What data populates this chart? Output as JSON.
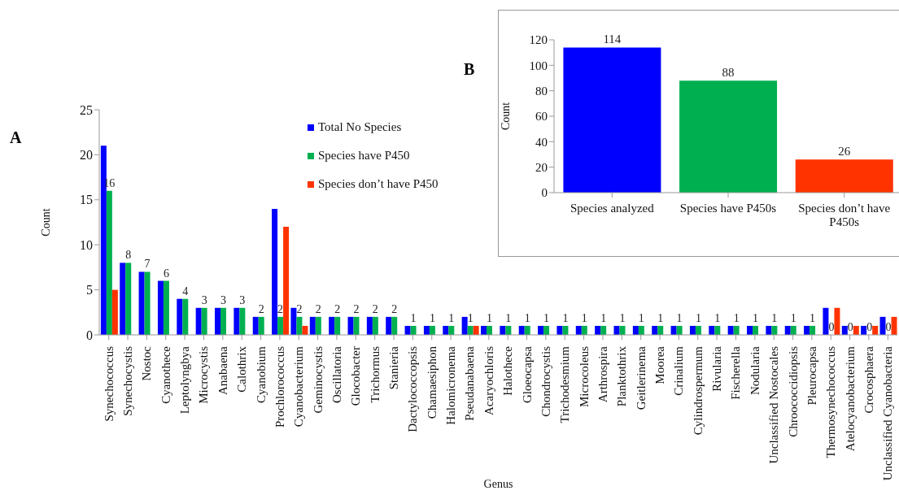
{
  "chart_data": [
    {
      "type": "bar",
      "xlabel": "Genus",
      "ylabel": "Count",
      "annotations": [
        "A"
      ],
      "ylim": [
        0,
        25
      ],
      "yticks": [
        0,
        5,
        10,
        15,
        20,
        25
      ],
      "grid": false,
      "legend": "top",
      "categories": [
        "Synechococcus",
        "Synechocystis",
        "Nostoc",
        "Cyanothece",
        "Leptolyngbya",
        "Microcystis",
        "Anabaena",
        "Calothrix",
        "Cyanobium",
        "Prochlorococcus",
        "Cyanobacterium",
        "Geminocystis",
        "Oscillatoria",
        "Glocobacter",
        "Trichormus",
        "Stanieria",
        "Dactylococcopsis",
        "Chamaesiphon",
        "Halomicronema",
        "Pseudanabaena",
        "Acaryochloris",
        "Halothece",
        "Gloeocapsa",
        "Chondrocystis",
        "Trichodesmium",
        "Microcoleus",
        "Arthrospira",
        "Planktothrix",
        "Geitlerinema",
        "Moorea",
        "Crinalium",
        "Cylindrospermum",
        "Rivularia",
        "Fischerella",
        "Nodularia",
        "Unclassified Nostocales",
        "Chroococcidiopsis",
        "Pleurocapsa",
        "Thermosynechococcus",
        "Atelocyanobacterium",
        "Crocosphaera",
        "Unclassified Cyanobacteria"
      ],
      "series": [
        {
          "name": "Total No Species",
          "color": "#0000ff",
          "values": [
            21,
            8,
            7,
            6,
            4,
            3,
            3,
            3,
            2,
            14,
            3,
            2,
            2,
            2,
            2,
            2,
            1,
            1,
            1,
            2,
            1,
            1,
            1,
            1,
            1,
            1,
            1,
            1,
            1,
            1,
            1,
            1,
            1,
            1,
            1,
            1,
            1,
            1,
            3,
            1,
            1,
            2
          ]
        },
        {
          "name": "Species have P450",
          "color": "#00b050",
          "values": [
            16,
            8,
            7,
            6,
            4,
            3,
            3,
            3,
            2,
            2,
            2,
            2,
            2,
            2,
            2,
            2,
            1,
            1,
            1,
            1,
            1,
            1,
            1,
            1,
            1,
            1,
            1,
            1,
            1,
            1,
            1,
            1,
            1,
            1,
            1,
            1,
            1,
            1,
            0,
            0,
            0,
            0
          ],
          "value_labels": [
            "16",
            "8",
            "7",
            "6",
            "4",
            "3",
            "3",
            "3",
            "2",
            "2",
            "2",
            "2",
            "2",
            "2",
            "2",
            "2",
            "1",
            "1",
            "1",
            "1",
            "1",
            "1",
            "1",
            "1",
            "1",
            "1",
            "1",
            "1",
            "1",
            "1",
            "1",
            "1",
            "1",
            "1",
            "1",
            "1",
            "1",
            "1",
            "0",
            "0",
            "0",
            "0"
          ]
        },
        {
          "name": "Species don’t have P450",
          "color": "#ff3300",
          "values": [
            5,
            0,
            0,
            0,
            0,
            0,
            0,
            0,
            0,
            12,
            1,
            0,
            0,
            0,
            0,
            0,
            0,
            0,
            0,
            1,
            0,
            0,
            0,
            0,
            0,
            0,
            0,
            0,
            0,
            0,
            0,
            0,
            0,
            0,
            0,
            0,
            0,
            0,
            3,
            1,
            1,
            2
          ]
        }
      ]
    },
    {
      "type": "bar",
      "ylabel": "Count",
      "annotations": [
        "B"
      ],
      "ylim": [
        0,
        120
      ],
      "yticks": [
        0,
        20,
        40,
        60,
        80,
        100,
        120
      ],
      "grid": false,
      "legend": false,
      "data_labels": true,
      "categories": [
        "Species analyzed",
        "Species have P450s",
        "Species don’t have P450s"
      ],
      "values": [
        114,
        88,
        26
      ],
      "colors": [
        "#0000ff",
        "#00b050",
        "#ff3300"
      ]
    }
  ]
}
